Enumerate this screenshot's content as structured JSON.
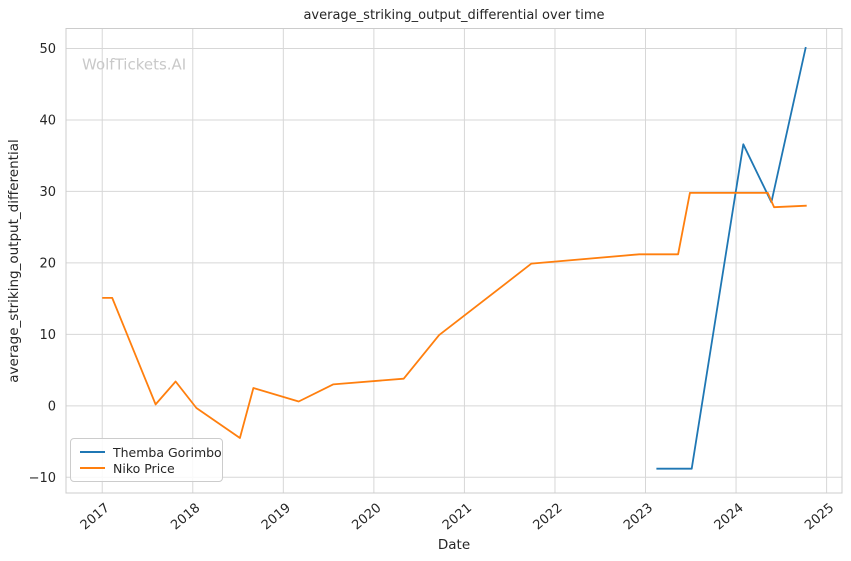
{
  "watermark": "WolfTickets.AI",
  "chart_data": {
    "type": "line",
    "title": "average_striking_output_differential over time",
    "xlabel": "Date",
    "ylabel": "average_striking_output_differential",
    "x_ticks": [
      2017,
      2018,
      2019,
      2020,
      2021,
      2022,
      2023,
      2024,
      2025
    ],
    "y_ticks": [
      -10,
      0,
      10,
      20,
      30,
      40,
      50
    ],
    "xlim": [
      2016.6,
      2025.17
    ],
    "ylim": [
      -12.2,
      52.8
    ],
    "grid": true,
    "legend_position": "lower left",
    "series": [
      {
        "name": "Themba Gorimbo",
        "color": "#1f77b4",
        "points": [
          [
            2023.12,
            -8.8
          ],
          [
            2023.51,
            -8.8
          ],
          [
            2024.08,
            36.6
          ],
          [
            2024.39,
            28.5
          ],
          [
            2024.77,
            50.2
          ]
        ]
      },
      {
        "name": "Niko Price",
        "color": "#ff7f0e",
        "points": [
          [
            2017.0,
            15.1
          ],
          [
            2017.11,
            15.1
          ],
          [
            2017.59,
            0.2
          ],
          [
            2017.81,
            3.4
          ],
          [
            2018.04,
            -0.3
          ],
          [
            2018.52,
            -4.5
          ],
          [
            2018.67,
            2.5
          ],
          [
            2019.17,
            0.6
          ],
          [
            2019.55,
            3.0
          ],
          [
            2020.33,
            3.8
          ],
          [
            2020.72,
            9.9
          ],
          [
            2021.74,
            19.9
          ],
          [
            2022.93,
            21.2
          ],
          [
            2023.36,
            21.2
          ],
          [
            2023.49,
            29.8
          ],
          [
            2024.35,
            29.8
          ],
          [
            2024.42,
            27.8
          ],
          [
            2024.78,
            28.0
          ]
        ]
      }
    ]
  },
  "style": {
    "grid_color": "#d7d7d7",
    "spine_color": "#cccccc",
    "text_color": "#262626",
    "watermark_color": "#c9c9c9"
  }
}
